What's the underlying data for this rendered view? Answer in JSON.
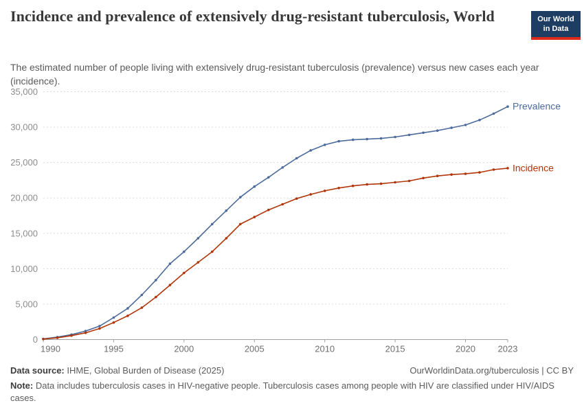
{
  "header": {
    "title": "Incidence and prevalence of extensively drug-resistant tuberculosis, World",
    "subtitle": "The estimated number of people living with extensively drug-resistant tuberculosis (prevalence) versus new cases each year (incidence).",
    "logo": {
      "line1": "Our World",
      "line2": "in Data",
      "bg_color": "#1d3d63",
      "stripe_color": "#dc2a1d"
    }
  },
  "chart_data": {
    "type": "line",
    "title": "Incidence and prevalence of extensively drug-resistant tuberculosis, World",
    "xlabel": "",
    "ylabel": "",
    "x": [
      1990,
      1991,
      1992,
      1993,
      1994,
      1995,
      1996,
      1997,
      1998,
      1999,
      2000,
      2001,
      2002,
      2003,
      2004,
      2005,
      2006,
      2007,
      2008,
      2009,
      2010,
      2011,
      2012,
      2013,
      2014,
      2015,
      2016,
      2017,
      2018,
      2019,
      2020,
      2021,
      2022,
      2023
    ],
    "series": [
      {
        "name": "Prevalence",
        "color": "#4c6a9c",
        "values": [
          100,
          350,
          700,
          1200,
          1900,
          3100,
          4400,
          6300,
          8400,
          10700,
          12400,
          14300,
          16300,
          18200,
          20100,
          21600,
          22900,
          24300,
          25600,
          26700,
          27500,
          28000,
          28200,
          28300,
          28400,
          28600,
          28900,
          29200,
          29500,
          29900,
          30300,
          31000,
          31900,
          32900
        ]
      },
      {
        "name": "Incidence",
        "color": "#b13507",
        "values": [
          70,
          250,
          550,
          950,
          1550,
          2400,
          3350,
          4500,
          6000,
          7700,
          9400,
          10900,
          12400,
          14300,
          16300,
          17300,
          18300,
          19100,
          19900,
          20500,
          21000,
          21400,
          21700,
          21900,
          22000,
          22200,
          22400,
          22800,
          23100,
          23300,
          23400,
          23600,
          24000,
          24200
        ]
      }
    ],
    "ylim": [
      0,
      35000
    ],
    "yticks": [
      0,
      5000,
      10000,
      15000,
      20000,
      25000,
      30000,
      35000
    ],
    "xticks": [
      1990,
      1995,
      2000,
      2005,
      2010,
      2015,
      2020,
      2023
    ],
    "grid": "horizontal-dashed",
    "legend_position": "line-end-labels",
    "colors": {
      "grid": "#dcdcdc",
      "axis": "#9e9e9e",
      "ytick_label": "#8c8c8c",
      "xtick_label": "#6e6e6e"
    }
  },
  "footer": {
    "source_label": "Data source:",
    "source_text": " IHME, Global Burden of Disease (2025)",
    "link_text": "OurWorldinData.org/tuberculosis | CC BY",
    "note_label": "Note:",
    "note_text": " Data includes tuberculosis cases in HIV-negative people. Tuberculosis cases among people with HIV are classified under HIV/AIDS cases."
  }
}
